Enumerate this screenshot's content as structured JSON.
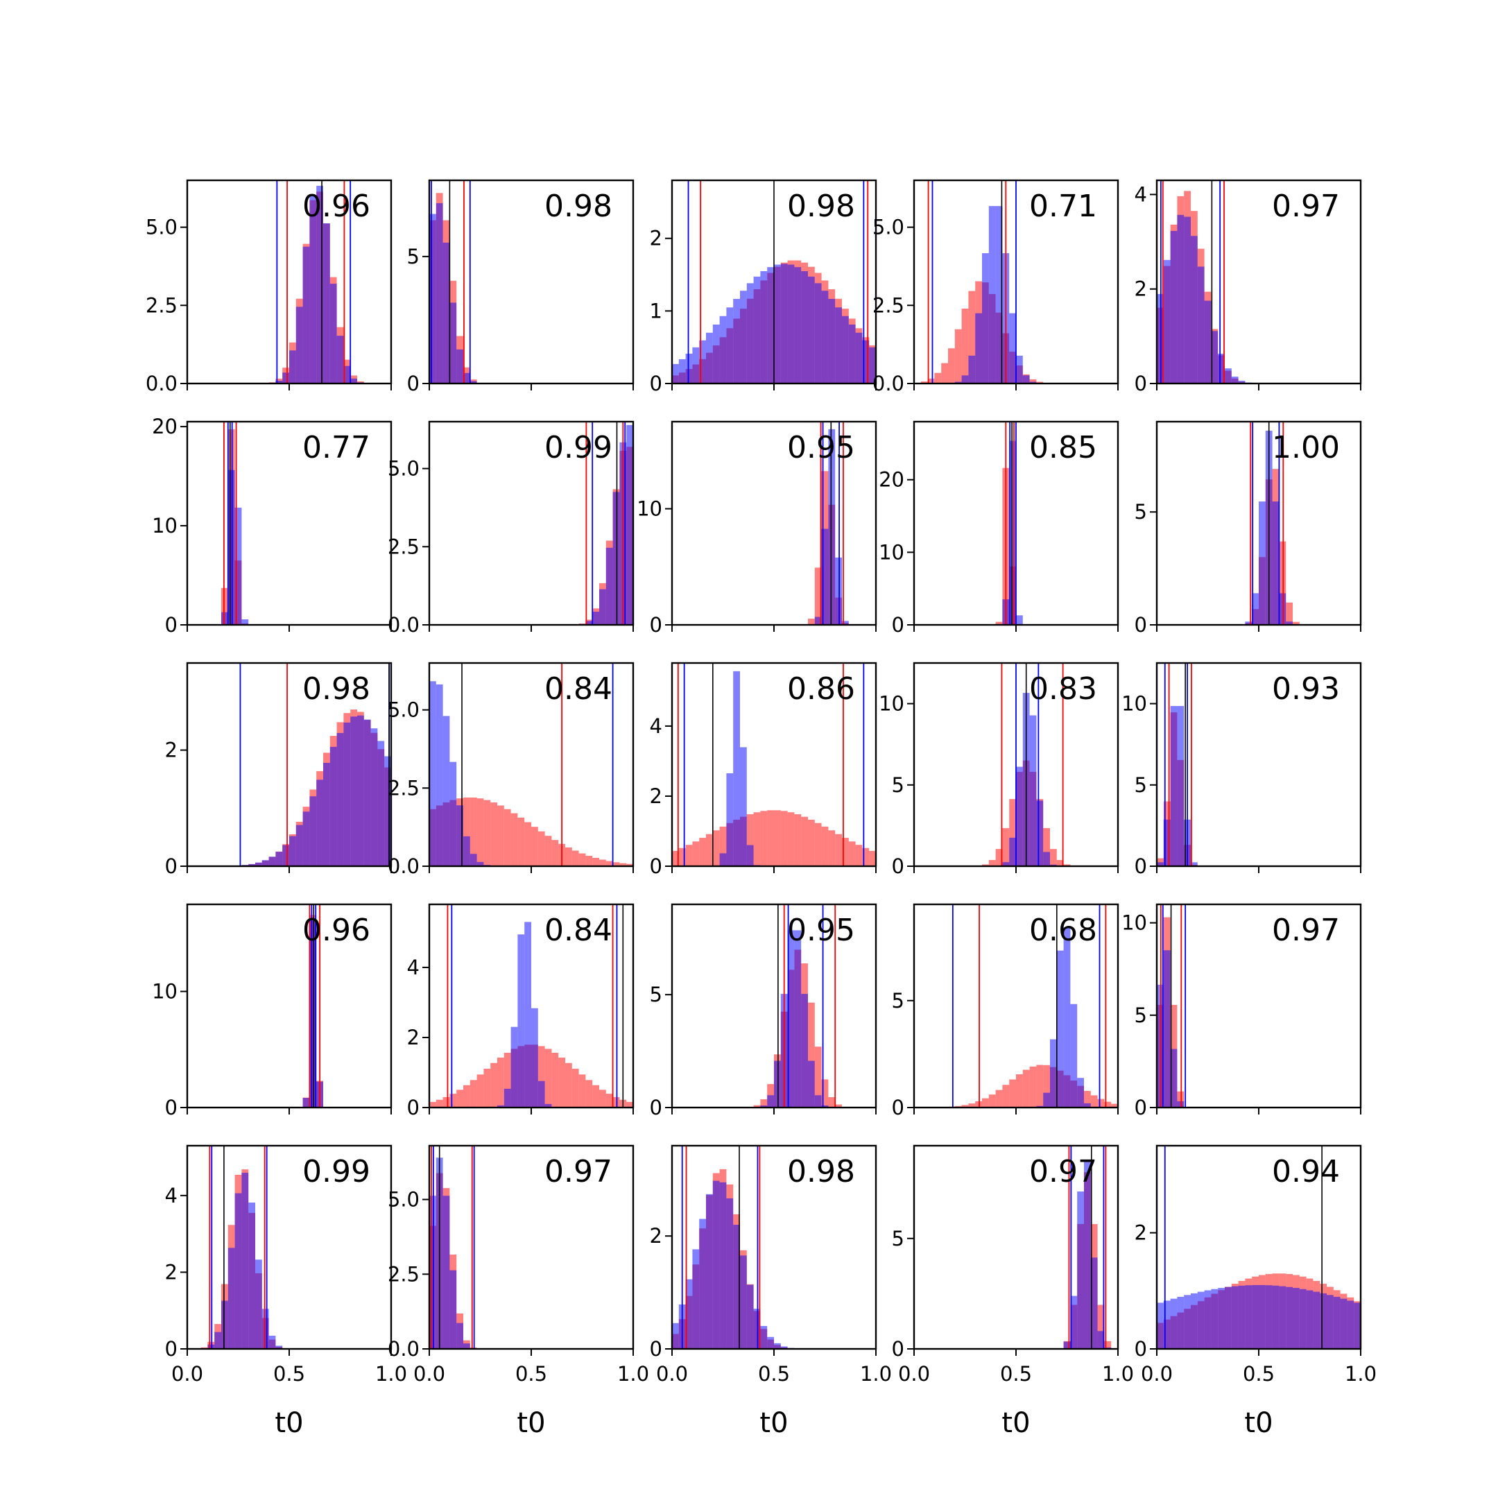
{
  "colors": {
    "series_a": "#ff0000",
    "series_b": "#0000ff",
    "overlap": "#7d3cab",
    "marker": "#000000"
  },
  "chart_data": {
    "type": "grid-of-histograms",
    "rows": 5,
    "cols": 5,
    "xlim": [
      0,
      1
    ],
    "xticks": [
      "0.0",
      "0.5",
      "1.0"
    ],
    "xlabel": "t0",
    "series_colors": [
      "red",
      "blue"
    ],
    "panels": [
      {
        "annotation": "0.96",
        "ymax": 6.5,
        "yticks": [
          {
            "v": 0,
            "label": "0.0"
          },
          {
            "v": 2.5,
            "label": "2.5"
          },
          {
            "v": 5,
            "label": "5.0"
          }
        ],
        "red": {
          "center": 0.64,
          "width": 0.07,
          "peak": 6.2
        },
        "blue": {
          "center": 0.64,
          "width": 0.065,
          "peak": 6.4
        },
        "vlines": {
          "red": [
            0.49,
            0.77
          ],
          "blue": [
            0.44,
            0.8
          ],
          "black": [
            0.66
          ]
        }
      },
      {
        "annotation": "0.98",
        "ymax": 8,
        "yticks": [
          {
            "v": 0,
            "label": "0"
          },
          {
            "v": 5,
            "label": "5"
          }
        ],
        "red": {
          "center": 0.05,
          "width": 0.06,
          "peak": 7.5
        },
        "blue": {
          "center": 0.04,
          "width": 0.06,
          "peak": 7.2
        },
        "vlines": {
          "red": [
            0.0,
            0.17
          ],
          "blue": [
            0.01,
            0.2
          ],
          "black": [
            0.1
          ]
        }
      },
      {
        "annotation": "0.98",
        "ymax": 2.8,
        "yticks": [
          {
            "v": 0,
            "label": "0"
          },
          {
            "v": 1,
            "label": "1"
          },
          {
            "v": 2,
            "label": "2"
          }
        ],
        "red": {
          "center": 0.6,
          "width": 0.25,
          "peak": 1.7
        },
        "blue": {
          "center": 0.55,
          "width": 0.28,
          "peak": 1.65
        },
        "vlines": {
          "red": [
            0.14,
            0.96
          ],
          "blue": [
            0.08,
            0.94
          ],
          "black": [
            0.5
          ]
        }
      },
      {
        "annotation": "0.71",
        "ymax": 6.5,
        "yticks": [
          {
            "v": 0,
            "label": "0.0"
          },
          {
            "v": 2.5,
            "label": "2.5"
          },
          {
            "v": 5,
            "label": "5.0"
          }
        ],
        "red": {
          "center": 0.33,
          "width": 0.1,
          "peak": 3.3
        },
        "blue": {
          "center": 0.4,
          "width": 0.06,
          "peak": 5.9
        },
        "vlines": {
          "red": [
            0.07,
            0.45
          ],
          "blue": [
            0.09,
            0.5
          ],
          "black": [
            0.43
          ]
        }
      },
      {
        "annotation": "0.97",
        "ymax": 4.3,
        "yticks": [
          {
            "v": 0,
            "label": "0"
          },
          {
            "v": 2,
            "label": "2"
          },
          {
            "v": 4,
            "label": "4"
          }
        ],
        "red": {
          "center": 0.14,
          "width": 0.09,
          "peak": 4.1
        },
        "blue": {
          "center": 0.13,
          "width": 0.1,
          "peak": 3.6
        },
        "vlines": {
          "red": [
            0.03,
            0.33
          ],
          "blue": [
            0.02,
            0.31
          ],
          "black": [
            0.27
          ]
        }
      },
      {
        "annotation": "0.77",
        "ymax": 20.5,
        "yticks": [
          {
            "v": 0,
            "label": "0"
          },
          {
            "v": 10,
            "label": "10"
          },
          {
            "v": 20,
            "label": "20"
          }
        ],
        "red": {
          "center": 0.22,
          "width": 0.02,
          "peak": 20
        },
        "blue": {
          "center": 0.23,
          "width": 0.02,
          "peak": 19.5
        },
        "vlines": {
          "red": [
            0.18,
            0.24
          ],
          "blue": [
            0.2,
            0.22
          ],
          "black": [
            0.21
          ]
        }
      },
      {
        "annotation": "0.99",
        "ymax": 6.5,
        "yticks": [
          {
            "v": 0,
            "label": "0.0"
          },
          {
            "v": 2.5,
            "label": "2.5"
          },
          {
            "v": 5,
            "label": "5.0"
          }
        ],
        "red": {
          "center": 0.97,
          "width": 0.07,
          "peak": 5.8
        },
        "blue": {
          "center": 0.98,
          "width": 0.07,
          "peak": 6.4
        },
        "vlines": {
          "red": [
            0.77,
            0.95
          ],
          "blue": [
            0.8,
            0.96
          ],
          "black": [
            0.92
          ]
        }
      },
      {
        "annotation": "0.95",
        "ymax": 17.5,
        "yticks": [
          {
            "v": 0,
            "label": "0"
          },
          {
            "v": 10,
            "label": "10"
          }
        ],
        "red": {
          "center": 0.76,
          "width": 0.03,
          "peak": 14
        },
        "blue": {
          "center": 0.78,
          "width": 0.025,
          "peak": 17
        },
        "vlines": {
          "red": [
            0.73,
            0.84
          ],
          "blue": [
            0.74,
            0.82
          ],
          "black": [
            0.78
          ]
        }
      },
      {
        "annotation": "0.85",
        "ymax": 28,
        "yticks": [
          {
            "v": 0,
            "label": "0"
          },
          {
            "v": 10,
            "label": "10"
          },
          {
            "v": 20,
            "label": "20"
          }
        ],
        "red": {
          "center": 0.46,
          "width": 0.015,
          "peak": 27
        },
        "blue": {
          "center": 0.48,
          "width": 0.015,
          "peak": 26
        },
        "vlines": {
          "red": [
            0.45,
            0.49
          ],
          "blue": [
            0.47,
            0.5
          ],
          "black": [
            0.48
          ]
        }
      },
      {
        "annotation": "1.00",
        "ymax": 9,
        "yticks": [
          {
            "v": 0,
            "label": "0"
          },
          {
            "v": 5,
            "label": "5"
          }
        ],
        "red": {
          "center": 0.57,
          "width": 0.04,
          "peak": 7.3
        },
        "blue": {
          "center": 0.55,
          "width": 0.035,
          "peak": 8.6
        },
        "vlines": {
          "red": [
            0.46,
            0.62
          ],
          "blue": [
            0.47,
            0.6
          ],
          "black": [
            0.55
          ]
        }
      },
      {
        "annotation": "0.98",
        "ymax": 3.5,
        "yticks": [
          {
            "v": 0,
            "label": "0"
          },
          {
            "v": 2,
            "label": "2"
          }
        ],
        "red": {
          "center": 0.82,
          "width": 0.17,
          "peak": 2.7
        },
        "blue": {
          "center": 0.84,
          "width": 0.18,
          "peak": 2.6
        },
        "vlines": {
          "red": [
            0.49,
            1.0
          ],
          "blue": [
            0.26,
            0.99
          ],
          "black": [
            0.99
          ]
        }
      },
      {
        "annotation": "0.84",
        "ymax": 6.5,
        "yticks": [
          {
            "v": 0,
            "label": "0.0"
          },
          {
            "v": 2.5,
            "label": "2.5"
          },
          {
            "v": 5,
            "label": "5.0"
          }
        ],
        "red": {
          "center": 0.2,
          "width": 0.3,
          "peak": 2.2
        },
        "blue": {
          "center": 0.03,
          "width": 0.08,
          "peak": 6
        },
        "vlines": {
          "red": [
            0.65,
            0.0
          ],
          "blue": [
            0.0,
            0.9
          ],
          "black": [
            0.16
          ]
        }
      },
      {
        "annotation": "0.86",
        "ymax": 5.8,
        "yticks": [
          {
            "v": 0,
            "label": "0"
          },
          {
            "v": 2,
            "label": "2"
          },
          {
            "v": 4,
            "label": "4"
          }
        ],
        "red": {
          "center": 0.5,
          "width": 0.3,
          "peak": 1.6
        },
        "blue": {
          "center": 0.32,
          "width": 0.03,
          "peak": 5.6
        },
        "vlines": {
          "red": [
            0.84,
            0.03
          ],
          "blue": [
            0.06,
            0.94
          ],
          "black": [
            0.2
          ]
        }
      },
      {
        "annotation": "0.83",
        "ymax": 12.5,
        "yticks": [
          {
            "v": 0,
            "label": "0"
          },
          {
            "v": 5,
            "label": "5"
          },
          {
            "v": 10,
            "label": "10"
          }
        ],
        "red": {
          "center": 0.55,
          "width": 0.07,
          "peak": 6.5
        },
        "blue": {
          "center": 0.56,
          "width": 0.04,
          "peak": 11
        },
        "vlines": {
          "red": [
            0.43,
            0.73
          ],
          "blue": [
            0.5,
            0.61
          ],
          "black": [
            0.55
          ]
        }
      },
      {
        "annotation": "0.93",
        "ymax": 12.5,
        "yticks": [
          {
            "v": 0,
            "label": "0"
          },
          {
            "v": 5,
            "label": "5"
          },
          {
            "v": 10,
            "label": "10"
          }
        ],
        "red": {
          "center": 0.09,
          "width": 0.03,
          "peak": 9.7
        },
        "blue": {
          "center": 0.1,
          "width": 0.03,
          "peak": 11.5
        },
        "vlines": {
          "red": [
            0.06,
            0.17
          ],
          "blue": [
            0.04,
            0.15
          ],
          "black": [
            0.14
          ]
        }
      },
      {
        "annotation": "0.96",
        "ymax": 17.5,
        "yticks": [
          {
            "v": 0,
            "label": "0"
          },
          {
            "v": 10,
            "label": "10"
          }
        ],
        "red": {
          "center": 0.62,
          "width": 0.015,
          "peak": 17
        },
        "blue": {
          "center": 0.62,
          "width": 0.015,
          "peak": 16.5
        },
        "vlines": {
          "red": [
            0.6,
            0.65
          ],
          "blue": [
            0.61,
            0.63
          ],
          "black": [
            0.62
          ]
        }
      },
      {
        "annotation": "0.84",
        "ymax": 5.8,
        "yticks": [
          {
            "v": 0,
            "label": "0"
          },
          {
            "v": 2,
            "label": "2"
          },
          {
            "v": 4,
            "label": "4"
          }
        ],
        "red": {
          "center": 0.5,
          "width": 0.22,
          "peak": 1.8
        },
        "blue": {
          "center": 0.47,
          "width": 0.04,
          "peak": 5.6
        },
        "vlines": {
          "red": [
            0.09,
            0.9
          ],
          "blue": [
            0.11,
            0.92
          ],
          "black": [
            0.95
          ]
        }
      },
      {
        "annotation": "0.95",
        "ymax": 9,
        "yticks": [
          {
            "v": 0,
            "label": "0"
          },
          {
            "v": 5,
            "label": "5"
          }
        ],
        "red": {
          "center": 0.62,
          "width": 0.07,
          "peak": 7
        },
        "blue": {
          "center": 0.6,
          "width": 0.05,
          "peak": 8.3
        },
        "vlines": {
          "red": [
            0.55,
            0.8
          ],
          "blue": [
            0.57,
            0.74
          ],
          "black": [
            0.52
          ]
        }
      },
      {
        "annotation": "0.68",
        "ymax": 9.5,
        "yticks": [
          {
            "v": 0,
            "label": "0"
          },
          {
            "v": 5,
            "label": "5"
          }
        ],
        "red": {
          "center": 0.63,
          "width": 0.16,
          "peak": 2
        },
        "blue": {
          "center": 0.74,
          "width": 0.04,
          "peak": 8.7
        },
        "vlines": {
          "red": [
            0.32,
            0.94
          ],
          "blue": [
            0.19,
            0.91
          ],
          "black": [
            0.7
          ]
        }
      },
      {
        "annotation": "0.97",
        "ymax": 11,
        "yticks": [
          {
            "v": 0,
            "label": "0"
          },
          {
            "v": 5,
            "label": "5"
          },
          {
            "v": 10,
            "label": "10"
          }
        ],
        "red": {
          "center": 0.05,
          "width": 0.03,
          "peak": 10.3
        },
        "blue": {
          "center": 0.04,
          "width": 0.03,
          "peak": 9
        },
        "vlines": {
          "red": [
            0.02,
            0.12
          ],
          "blue": [
            0.03,
            0.14
          ],
          "black": [
            0.07
          ]
        }
      },
      {
        "annotation": "0.99",
        "ymax": 5.3,
        "yticks": [
          {
            "v": 0,
            "label": "0"
          },
          {
            "v": 2,
            "label": "2"
          },
          {
            "v": 4,
            "label": "4"
          }
        ],
        "red": {
          "center": 0.27,
          "width": 0.06,
          "peak": 4.8
        },
        "blue": {
          "center": 0.28,
          "width": 0.06,
          "peak": 4.6
        },
        "vlines": {
          "red": [
            0.11,
            0.38
          ],
          "blue": [
            0.12,
            0.39
          ],
          "black": [
            0.18
          ]
        }
      },
      {
        "annotation": "0.97",
        "ymax": 6.8,
        "yticks": [
          {
            "v": 0,
            "label": "0.0"
          },
          {
            "v": 2.5,
            "label": "2.5"
          },
          {
            "v": 5,
            "label": "5.0"
          }
        ],
        "red": {
          "center": 0.06,
          "width": 0.05,
          "peak": 6
        },
        "blue": {
          "center": 0.05,
          "width": 0.05,
          "peak": 6.4
        },
        "vlines": {
          "red": [
            0.01,
            0.21
          ],
          "blue": [
            0.02,
            0.22
          ],
          "black": [
            0.05
          ]
        }
      },
      {
        "annotation": "0.98",
        "ymax": 3.6,
        "yticks": [
          {
            "v": 0,
            "label": "0"
          },
          {
            "v": 2,
            "label": "2"
          }
        ],
        "red": {
          "center": 0.24,
          "width": 0.1,
          "peak": 3.2
        },
        "blue": {
          "center": 0.23,
          "width": 0.11,
          "peak": 3
        },
        "vlines": {
          "red": [
            0.07,
            0.43
          ],
          "blue": [
            0.05,
            0.42
          ],
          "black": [
            0.33
          ]
        }
      },
      {
        "annotation": "0.97",
        "ymax": 9.2,
        "yticks": [
          {
            "v": 0,
            "label": "0"
          },
          {
            "v": 5,
            "label": "5"
          }
        ],
        "red": {
          "center": 0.85,
          "width": 0.04,
          "peak": 8
        },
        "blue": {
          "center": 0.84,
          "width": 0.035,
          "peak": 8.9
        },
        "vlines": {
          "red": [
            0.76,
            0.94
          ],
          "blue": [
            0.77,
            0.93
          ],
          "black": [
            0.87
          ]
        }
      },
      {
        "annotation": "0.94",
        "ymax": 3.5,
        "yticks": [
          {
            "v": 0,
            "label": "0"
          },
          {
            "v": 2,
            "label": "2"
          }
        ],
        "red": {
          "center": 0.6,
          "width": 0.4,
          "peak": 1.3
        },
        "blue": {
          "center": 0.5,
          "width": 0.6,
          "peak": 1.1
        },
        "vlines": {
          "red": [],
          "blue": [
            0.04,
            1.0
          ],
          "black": [
            0.81
          ]
        }
      }
    ]
  }
}
